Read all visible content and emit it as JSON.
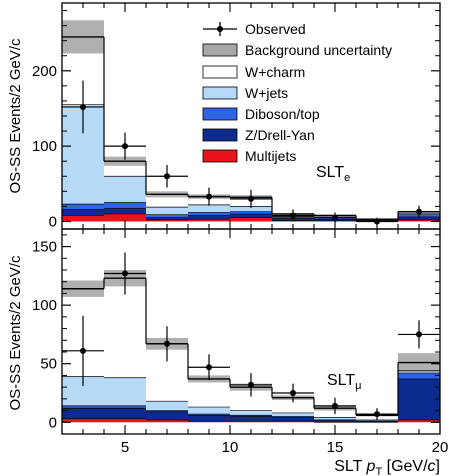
{
  "chart_data": [
    {
      "type": "bar",
      "stacked": true,
      "panel_label_main": "SLT",
      "panel_label_sub": "e",
      "ylabel": "OS-SS Events/2 GeV/c",
      "ylim": [
        -10,
        290
      ],
      "yticks": [
        0,
        100,
        200
      ],
      "xlim": [
        2,
        20
      ],
      "bin_edges": [
        2,
        4,
        6,
        8,
        10,
        12,
        14,
        16,
        18,
        20
      ],
      "series": [
        {
          "name": "Multijets",
          "color": "#e8141b",
          "values": [
            8,
            10,
            2,
            3,
            5,
            1,
            1,
            0,
            2
          ]
        },
        {
          "name": "Z/Drell-Yan",
          "color": "#0b2b8f",
          "values": [
            8,
            7,
            3,
            5,
            5,
            3,
            2,
            1,
            4
          ]
        },
        {
          "name": "Diboson/top",
          "color": "#2f63e6",
          "values": [
            7,
            8,
            4,
            4,
            3,
            2,
            2,
            1,
            3
          ]
        },
        {
          "name": "W+jets",
          "color": "#b5d9f7",
          "values": [
            132,
            35,
            10,
            10,
            7,
            1,
            1,
            0,
            2
          ]
        },
        {
          "name": "W+charm",
          "color": "#ffffff",
          "values": [
            90,
            20,
            17,
            11,
            12,
            3,
            2,
            1,
            2
          ]
        }
      ],
      "background_uncertainty": [
        22,
        6,
        4,
        3,
        3,
        1,
        1,
        1,
        1
      ],
      "observed": {
        "x": [
          3,
          5,
          7,
          9,
          11,
          13,
          15,
          17,
          19
        ],
        "y": [
          152,
          100,
          60,
          33,
          30,
          8,
          5,
          0,
          13
        ],
        "yerr": [
          35,
          18,
          15,
          12,
          12,
          8,
          7,
          5,
          8
        ]
      }
    },
    {
      "type": "bar",
      "stacked": true,
      "panel_label_main": "SLT",
      "panel_label_sub": "μ",
      "ylabel": "OS-SS Events/2 GeV/c",
      "ylim": [
        -10,
        165
      ],
      "yticks": [
        0,
        50,
        100,
        150
      ],
      "xticks": [
        5,
        10,
        15,
        20
      ],
      "xlim": [
        2,
        20
      ],
      "xlabel_main": "SLT ",
      "xlabel_italic": "p",
      "xlabel_sub": "T",
      "xlabel_unit_start": " [GeV/",
      "xlabel_unit_italic": "c",
      "xlabel_unit_end": "]",
      "bin_edges": [
        2,
        4,
        6,
        8,
        10,
        12,
        14,
        16,
        18,
        20
      ],
      "series": [
        {
          "name": "Multijets",
          "color": "#e8141b",
          "values": [
            3,
            3,
            2,
            1,
            1,
            1,
            0,
            0,
            2
          ]
        },
        {
          "name": "Z/Drell-Yan",
          "color": "#0b2b8f",
          "values": [
            9,
            9,
            7,
            5,
            4,
            3,
            2,
            1,
            35
          ]
        },
        {
          "name": "Diboson/top",
          "color": "#2f63e6",
          "values": [
            2,
            2,
            1,
            1,
            1,
            1,
            0,
            0,
            5
          ]
        },
        {
          "name": "W+jets",
          "color": "#b5d9f7",
          "values": [
            25,
            24,
            8,
            6,
            4,
            3,
            2,
            1,
            2
          ]
        },
        {
          "name": "W+charm",
          "color": "#ffffff",
          "values": [
            75,
            85,
            49,
            24,
            20,
            13,
            8,
            4,
            7
          ]
        }
      ],
      "background_uncertainty": [
        7,
        7,
        5,
        3,
        3,
        2,
        2,
        1,
        8
      ],
      "observed": {
        "x": [
          3,
          5,
          7,
          9,
          11,
          13,
          15,
          17,
          19
        ],
        "y": [
          61,
          127,
          67,
          47,
          32,
          25,
          14,
          7,
          75
        ],
        "yerr": [
          30,
          18,
          15,
          11,
          10,
          8,
          7,
          5,
          12
        ]
      }
    }
  ],
  "legend": {
    "observed": "Observed",
    "background_uncertainty": "Background uncertainty",
    "entries": [
      {
        "label": "W+charm",
        "color": "#ffffff"
      },
      {
        "label": "W+jets",
        "color": "#b5d9f7"
      },
      {
        "label": "Diboson/top",
        "color": "#2f63e6"
      },
      {
        "label": "Z/Drell-Yan",
        "color": "#0b2b8f"
      },
      {
        "label": "Multijets",
        "color": "#e8141b"
      }
    ]
  },
  "colors": {
    "uncertainty_band": "#a7a7a7"
  }
}
